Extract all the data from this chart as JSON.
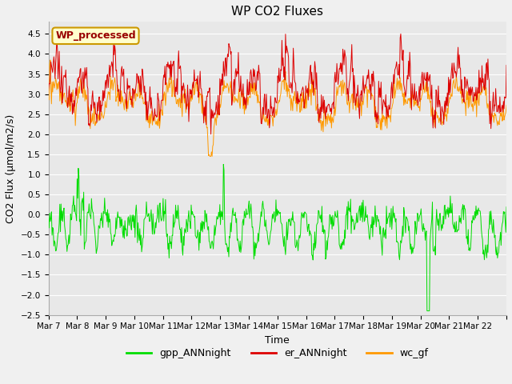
{
  "title": "WP CO2 Fluxes",
  "xlabel": "Time",
  "ylabel": "CO2 Flux (μmol/m2/s)",
  "ylim": [
    -2.5,
    4.8
  ],
  "n_days": 16,
  "pts_per_day": 48,
  "er_color": "#dd0000",
  "gpp_color": "#00dd00",
  "wc_color": "#ff9900",
  "bg_color": "#e8e8e8",
  "plot_bg_color": "#f0f0f0",
  "legend_box_facecolor": "#ffffcc",
  "legend_box_edgecolor": "#cc9900",
  "legend_text": "WP_processed",
  "legend_text_color": "#990000",
  "series_labels": [
    "gpp_ANNnight",
    "er_ANNnight",
    "wc_gf"
  ],
  "x_tick_labels": [
    "Mar 7",
    "Mar 8",
    "Mar 9",
    "Mar 10",
    "Mar 11",
    "Mar 12",
    "Mar 13",
    "Mar 14",
    "Mar 15",
    "Mar 16",
    "Mar 17",
    "Mar 18",
    "Mar 19",
    "Mar 20",
    "Mar 21",
    "Mar 22"
  ],
  "yticks": [
    -2.5,
    -2.0,
    -1.5,
    -1.0,
    -0.5,
    0.0,
    0.5,
    1.0,
    1.5,
    2.0,
    2.5,
    3.0,
    3.5,
    4.0,
    4.5
  ],
  "title_fontsize": 11,
  "axis_label_fontsize": 9,
  "tick_fontsize": 7.5,
  "legend_fontsize": 9,
  "linewidth": 0.7
}
